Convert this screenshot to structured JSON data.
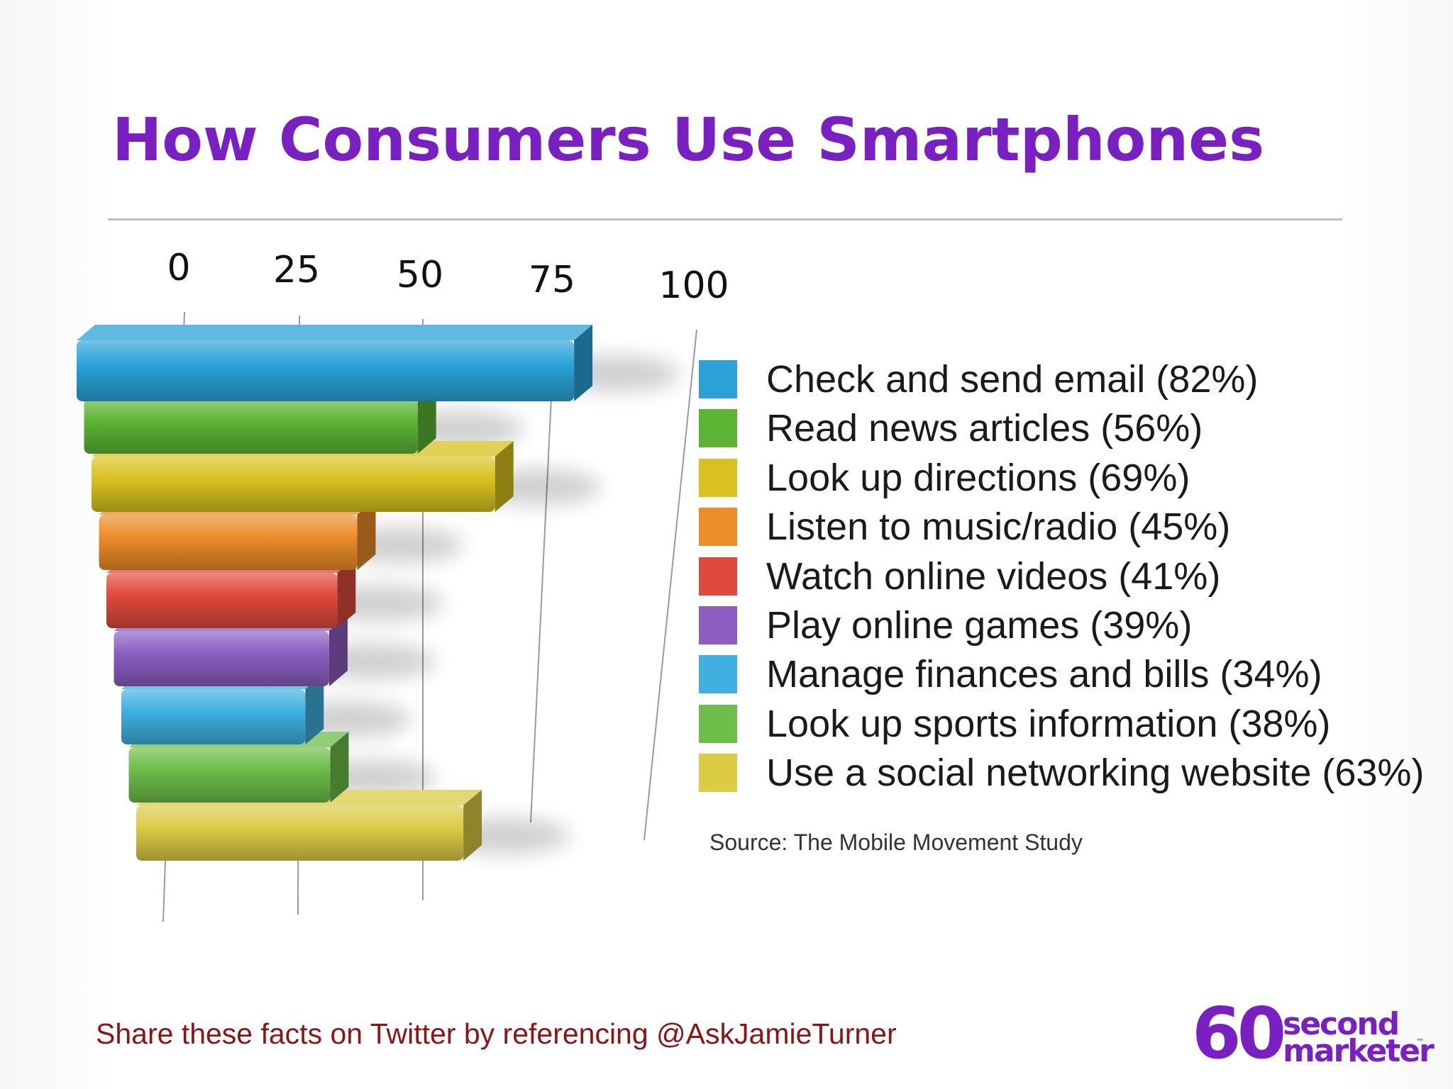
{
  "title": "How Consumers Use Smartphones",
  "source": "Source: The Mobile Movement Study",
  "footer": "Share these facts on Twitter by referencing @AskJamieTurner",
  "logo": {
    "number": "60",
    "line1": "second",
    "line2": "marketer",
    "tm": "™"
  },
  "colors": {
    "title": "#7a1fc2",
    "footer": "#8b1414"
  },
  "chart_data": {
    "type": "bar",
    "orientation": "horizontal",
    "style": "3d",
    "title": "How Consumers Use Smartphones",
    "xlim": [
      0,
      100
    ],
    "ticks": [
      "0",
      "25",
      "50",
      "75",
      "100"
    ],
    "grid": true,
    "legend_position": "right",
    "categories": [
      "Check and send email (82%)",
      "Read news articles (56%)",
      "Look up directions (69%)",
      "Listen to music/radio (45%)",
      "Watch online videos (41%)",
      "Play online games (39%)",
      "Manage finances and bills (34%)",
      "Look up sports information (38%)",
      "Use a social networking website (63%)"
    ],
    "values": [
      82,
      56,
      69,
      45,
      41,
      39,
      34,
      38,
      63
    ],
    "colors": [
      "#2aa2d8",
      "#5db536",
      "#d9c21f",
      "#ec8c2a",
      "#df4a3c",
      "#8c5ec2",
      "#3fb0df",
      "#6dbd4a",
      "#dccb45"
    ]
  }
}
